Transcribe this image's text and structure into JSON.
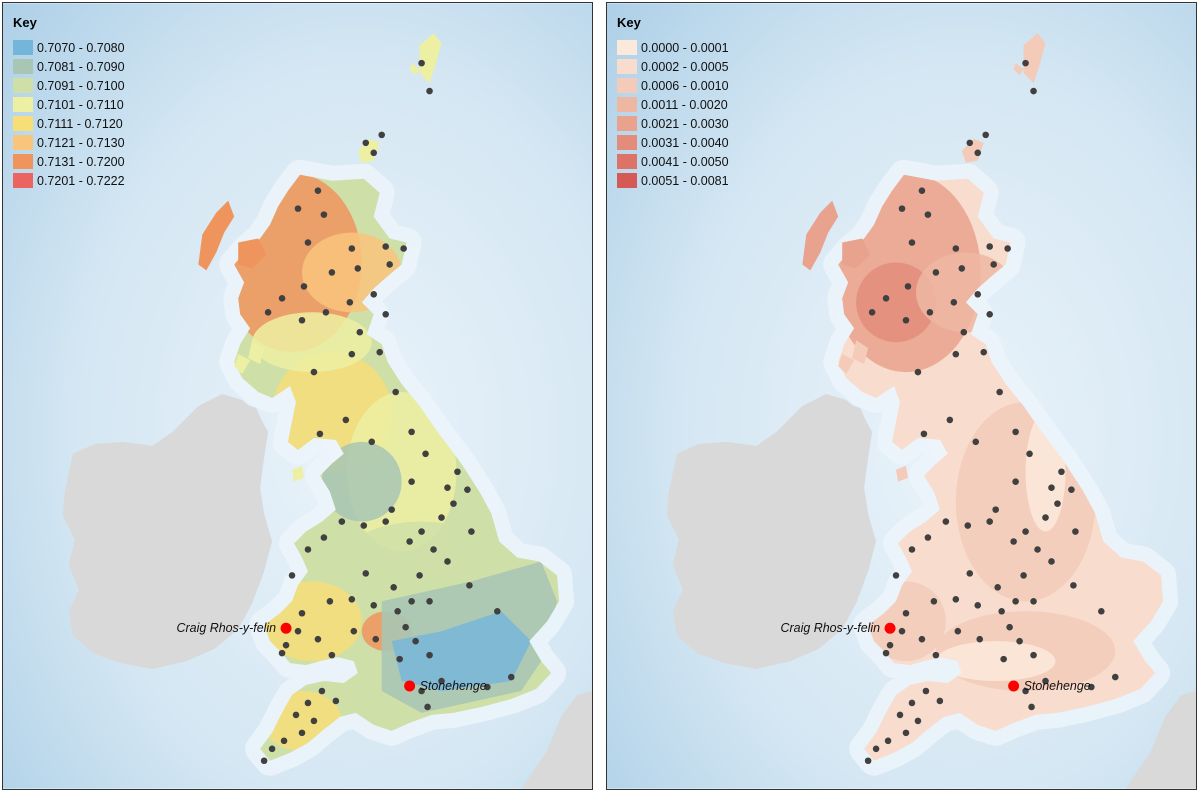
{
  "colors": {
    "sea_deep": "#a9cde6",
    "sea_shallow": "#eaf3fa",
    "land_other": "#d9d9d9",
    "sample_dot": "#404040",
    "site_dot": "#ff0000"
  },
  "panels": [
    {
      "id": "strontium",
      "legend": {
        "title": "Key",
        "items": [
          {
            "label": "0.7070 - 0.7080",
            "color": "#74b5dc"
          },
          {
            "label": "0.7081 - 0.7090",
            "color": "#a8c6b4"
          },
          {
            "label": "0.7091 - 0.7100",
            "color": "#cfdfa8"
          },
          {
            "label": "0.7101 - 0.7110",
            "color": "#edf0a2"
          },
          {
            "label": "0.7111 - 0.7120",
            "color": "#f6de79"
          },
          {
            "label": "0.7121 - 0.7130",
            "color": "#f9c47c"
          },
          {
            "label": "0.7131 - 0.7200",
            "color": "#f0945e"
          },
          {
            "label": "0.7201 - 0.7222",
            "color": "#ec6461"
          }
        ]
      },
      "sites": [
        {
          "name": "Craig Rhos-y-felin",
          "label_side": "left"
        },
        {
          "name": "Stonehenge",
          "label_side": "right"
        }
      ]
    },
    {
      "id": "uncertainty",
      "legend": {
        "title": "Key",
        "items": [
          {
            "label": "0.0000 - 0.0001",
            "color": "#fbe9dc"
          },
          {
            "label": "0.0002 - 0.0005",
            "color": "#f8dccd"
          },
          {
            "label": "0.0006 - 0.0010",
            "color": "#f3cbb8"
          },
          {
            "label": "0.0011 - 0.0020",
            "color": "#eeb7a2"
          },
          {
            "label": "0.0021 - 0.0030",
            "color": "#e9a28d"
          },
          {
            "label": "0.0031 - 0.0040",
            "color": "#e48c7a"
          },
          {
            "label": "0.0041 - 0.0050",
            "color": "#dd7266"
          },
          {
            "label": "0.0051 - 0.0081",
            "color": "#d55a56"
          }
        ]
      },
      "sites": [
        {
          "name": "Craig Rhos-y-felin",
          "label_side": "left"
        },
        {
          "name": "Stonehenge",
          "label_side": "right"
        }
      ]
    }
  ]
}
